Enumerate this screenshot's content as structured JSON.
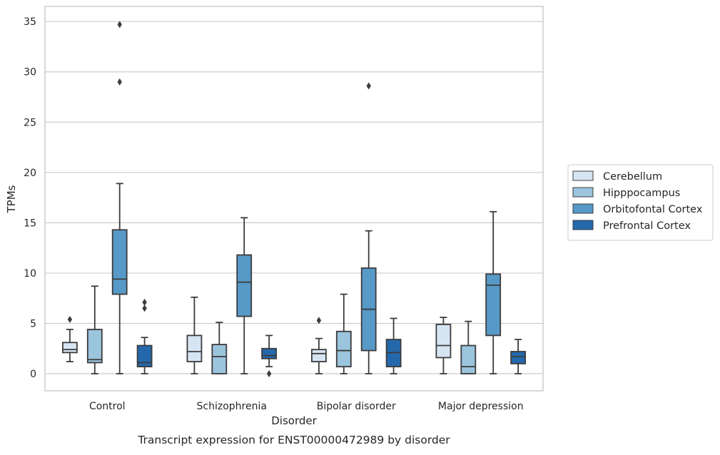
{
  "chart_data": {
    "type": "boxplot",
    "xlabel": "Disorder",
    "ylabel": "TPMs",
    "caption": "Transcript expression for ENST00000472989 by disorder",
    "categories": [
      "Control",
      "Schizophrenia",
      "Bipolar disorder",
      "Major depression"
    ],
    "ylim": [
      -1.7,
      36.5
    ],
    "yticks": [
      0,
      5,
      10,
      15,
      20,
      25,
      30,
      35
    ],
    "grid": "horizontal",
    "legend_position": "right",
    "series": [
      {
        "name": "Cerebellum",
        "color": "#d7e5f3",
        "boxes": [
          {
            "whislo": 1.2,
            "q1": 2.1,
            "med": 2.4,
            "q3": 3.1,
            "whishi": 4.4,
            "fliers": [
              5.4
            ]
          },
          {
            "whislo": 0.0,
            "q1": 1.2,
            "med": 2.2,
            "q3": 3.8,
            "whishi": 7.6,
            "fliers": []
          },
          {
            "whislo": 0.0,
            "q1": 1.2,
            "med": 2.0,
            "q3": 2.4,
            "whishi": 3.5,
            "fliers": [
              5.3
            ]
          },
          {
            "whislo": 0.0,
            "q1": 1.6,
            "med": 2.8,
            "q3": 4.9,
            "whishi": 5.6,
            "fliers": []
          }
        ]
      },
      {
        "name": "Hipppocampus",
        "color": "#9bc4dd",
        "boxes": [
          {
            "whislo": 0.0,
            "q1": 1.1,
            "med": 1.4,
            "q3": 4.4,
            "whishi": 8.7,
            "fliers": []
          },
          {
            "whislo": 0.0,
            "q1": 0.0,
            "med": 1.7,
            "q3": 2.9,
            "whishi": 5.1,
            "fliers": []
          },
          {
            "whislo": 0.0,
            "q1": 0.7,
            "med": 2.3,
            "q3": 4.2,
            "whishi": 7.9,
            "fliers": []
          },
          {
            "whislo": 0.0,
            "q1": 0.0,
            "med": 0.7,
            "q3": 2.8,
            "whishi": 5.2,
            "fliers": []
          }
        ]
      },
      {
        "name": "Orbitofontal Cortex",
        "color": "#5799c7",
        "boxes": [
          {
            "whislo": 0.0,
            "q1": 7.9,
            "med": 9.4,
            "q3": 14.3,
            "whishi": 18.9,
            "fliers": [
              29.0,
              34.7
            ]
          },
          {
            "whislo": 0.0,
            "q1": 5.7,
            "med": 9.1,
            "q3": 11.8,
            "whishi": 15.5,
            "fliers": []
          },
          {
            "whislo": 0.0,
            "q1": 2.3,
            "med": 6.4,
            "q3": 10.5,
            "whishi": 14.2,
            "fliers": [
              28.6
            ]
          },
          {
            "whislo": 0.0,
            "q1": 3.8,
            "med": 8.8,
            "q3": 9.9,
            "whishi": 16.1,
            "fliers": []
          }
        ]
      },
      {
        "name": "Prefrontal Cortex",
        "color": "#2468ac",
        "boxes": [
          {
            "whislo": 0.0,
            "q1": 0.7,
            "med": 1.1,
            "q3": 2.8,
            "whishi": 3.6,
            "fliers": [
              6.5,
              7.1
            ]
          },
          {
            "whislo": 0.7,
            "q1": 1.5,
            "med": 1.8,
            "q3": 2.5,
            "whishi": 3.8,
            "fliers": [
              0.0
            ]
          },
          {
            "whislo": 0.0,
            "q1": 0.7,
            "med": 2.1,
            "q3": 3.4,
            "whishi": 5.5,
            "fliers": []
          },
          {
            "whislo": 0.0,
            "q1": 1.0,
            "med": 1.7,
            "q3": 2.2,
            "whishi": 3.4,
            "fliers": []
          }
        ]
      }
    ]
  }
}
